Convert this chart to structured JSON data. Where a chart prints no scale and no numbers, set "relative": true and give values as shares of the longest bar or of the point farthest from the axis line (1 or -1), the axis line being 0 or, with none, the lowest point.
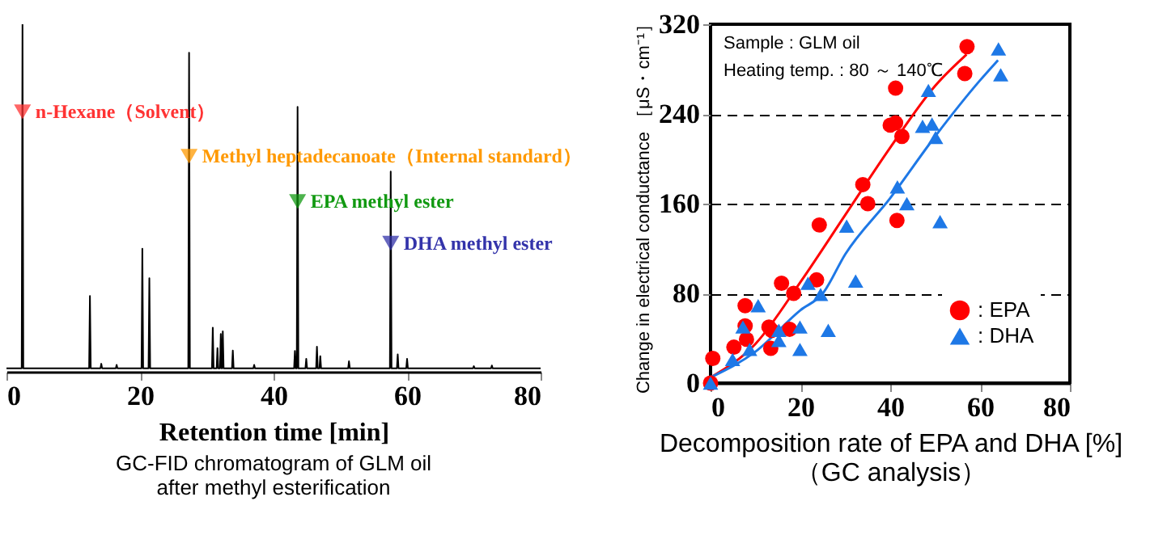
{
  "chart_data": [
    {
      "type": "line",
      "relative": true,
      "xlim": [
        0,
        80
      ],
      "xticks": [
        0,
        20,
        40,
        60,
        80
      ],
      "xlabel": "Retention time [min]",
      "tick_labels": "x",
      "x": [
        0,
        2.28,
        2.4,
        2.52,
        12.38,
        12.5,
        12.62,
        14.08,
        14.2,
        14.32,
        16.38,
        16.5,
        16.62,
        20.23,
        20.35,
        20.47,
        21.28,
        21.4,
        21.52,
        27.23,
        27.35,
        27.47,
        30.78,
        30.9,
        31.02,
        31.48,
        31.6,
        31.72,
        31.98,
        32.1,
        32.22,
        32.28,
        32.4,
        32.52,
        33.78,
        33.9,
        34.02,
        36.98,
        37.1,
        37.22,
        43.08,
        43.2,
        43.32,
        43.48,
        43.6,
        43.72,
        44.78,
        44.9,
        45.02,
        46.38,
        46.5,
        46.62,
        46.88,
        47.0,
        47.12,
        51.18,
        51.3,
        51.42,
        57.43,
        57.55,
        57.67,
        58.48,
        58.6,
        58.72,
        59.88,
        60.0,
        60.12,
        69.88,
        70.0,
        70.12,
        72.58,
        72.7,
        72.82,
        80
      ],
      "series": [
        {
          "color": "#000000",
          "values": [
            0.01,
            0.01,
            1.0,
            0.01,
            0.01,
            0.218,
            0.01,
            0.01,
            0.023,
            0.01,
            0.01,
            0.02,
            0.01,
            0.01,
            0.354,
            0.01,
            0.01,
            0.269,
            0.01,
            0.01,
            0.918,
            0.01,
            0.01,
            0.127,
            0.01,
            0.01,
            0.068,
            0.01,
            0.01,
            0.109,
            0.01,
            0.01,
            0.116,
            0.01,
            0.01,
            0.061,
            0.01,
            0.01,
            0.02,
            0.01,
            0.01,
            0.06,
            0.01,
            0.01,
            0.762,
            0.01,
            0.01,
            0.037,
            0.01,
            0.01,
            0.072,
            0.01,
            0.01,
            0.045,
            0.01,
            0.01,
            0.03,
            0.01,
            0.01,
            0.576,
            0.01,
            0.01,
            0.05,
            0.01,
            0.01,
            0.037,
            0.01,
            0.01,
            0.016,
            0.01,
            0.01,
            0.018,
            0.01,
            0.01
          ]
        }
      ],
      "annotations": [
        {
          "text": "n-Hexane（Solvent）",
          "x": 2.4,
          "y": 0.748
        },
        {
          "text": "Methyl heptadecanoate（Internal standard）",
          "x": 27.35,
          "y": 0.62
        },
        {
          "text": "EPA methyl ester",
          "x": 43.6,
          "y": 0.49
        },
        {
          "text": "DHA methyl ester",
          "x": 57.55,
          "y": 0.37
        },
        "GC-FID chromatogram of GLM oil\nafter methyl esterification"
      ]
    },
    {
      "type": "scatter",
      "xlim": [
        0,
        80
      ],
      "xticks": [
        0,
        20,
        40,
        60,
        80
      ],
      "ylim": [
        0,
        320
      ],
      "yticks": [
        0,
        80,
        160,
        240,
        320
      ],
      "grid": "y",
      "legend": "bottom right",
      "xlabel": "Decomposition rate of EPA and DHA [%]\n（GC analysis）",
      "ylabel": "Change in electrical conductance ［μS・cm⁻¹］",
      "annotations": [
        "Sample : GLM oil",
        "Heating temp. : 80 ～ 140℃"
      ],
      "series": [
        {
          "name": ": EPA",
          "color": "#ff0000",
          "marker": "circle",
          "x": [
            0,
            0.5,
            5.2,
            7.7,
            8,
            7.7,
            13,
            13.6,
            13.4,
            15.8,
            17.6,
            18.5,
            23.6,
            24.2,
            33.9,
            35,
            40,
            41.2,
            41.2,
            41.5,
            42.6,
            56.6,
            57.1
          ],
          "values": [
            0,
            22,
            32,
            51,
            39,
            69,
            50,
            47,
            31,
            89,
            48,
            80,
            92,
            141,
            177,
            160,
            230,
            232,
            263,
            145,
            220,
            276,
            300
          ]
        },
        {
          "name": ": DHA",
          "color": "#1e78e6",
          "marker": "triangle",
          "x": [
            0,
            4.9,
            7.2,
            8.7,
            10.6,
            15.2,
            15.2,
            19.9,
            19.9,
            21.7,
            24.5,
            26.2,
            30.3,
            32.3,
            41.6,
            43.7,
            47.2,
            48.5,
            49.3,
            50.1,
            51.1,
            64.1,
            64.6
          ],
          "values": [
            0,
            21,
            50,
            30,
            69,
            47,
            38,
            50,
            30,
            89,
            79,
            47,
            140,
            91,
            175,
            160,
            229,
            261,
            231,
            219,
            144,
            298,
            275
          ]
        },
        {
          "type": "line",
          "color": "#ff0000",
          "x": [
            0,
            10,
            20,
            30,
            40,
            50,
            57
          ],
          "values": [
            5,
            35,
            90,
            150,
            210,
            265,
            293
          ]
        },
        {
          "type": "line",
          "color": "#1e78e6",
          "x": [
            0,
            10,
            20,
            25,
            30,
            40,
            50,
            60,
            64
          ],
          "values": [
            5,
            28,
            65,
            80,
            115,
            165,
            220,
            270,
            288
          ]
        }
      ]
    }
  ]
}
